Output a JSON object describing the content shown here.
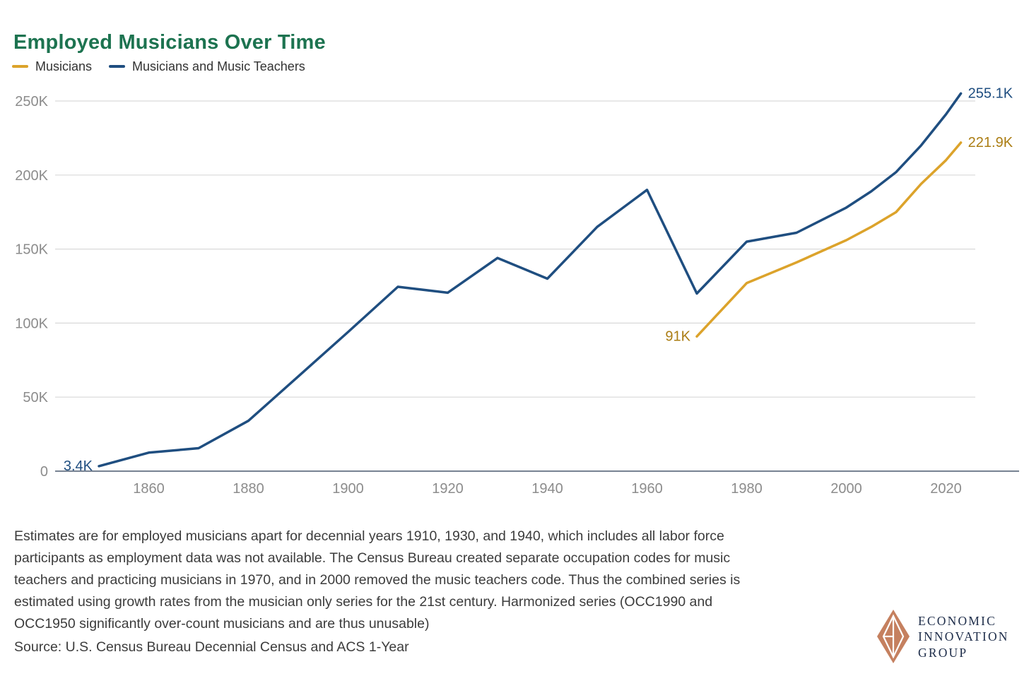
{
  "header": {
    "title": "Employed Musicians Over Time",
    "title_color": "#1d7350"
  },
  "legend": {
    "items": [
      {
        "label": "Musicians",
        "color": "#DCA32B"
      },
      {
        "label": "Musicians and Music Teachers",
        "color": "#1F4E80"
      }
    ]
  },
  "chart_data": {
    "type": "line",
    "title": "Employed Musicians Over Time",
    "xlabel": "",
    "ylabel": "",
    "x_range": [
      1850,
      2025
    ],
    "y_range": [
      0,
      260000
    ],
    "grid": true,
    "legend_position": "top-left",
    "x_ticks": [
      {
        "value": 1860,
        "label": "1860"
      },
      {
        "value": 1880,
        "label": "1880"
      },
      {
        "value": 1900,
        "label": "1900"
      },
      {
        "value": 1920,
        "label": "1920"
      },
      {
        "value": 1940,
        "label": "1940"
      },
      {
        "value": 1960,
        "label": "1960"
      },
      {
        "value": 1980,
        "label": "1980"
      },
      {
        "value": 2000,
        "label": "2000"
      },
      {
        "value": 2020,
        "label": "2020"
      }
    ],
    "y_ticks": [
      {
        "value": 0,
        "label": "0"
      },
      {
        "value": 50000,
        "label": "50K"
      },
      {
        "value": 100000,
        "label": "100K"
      },
      {
        "value": 150000,
        "label": "150K"
      },
      {
        "value": 200000,
        "label": "200K"
      },
      {
        "value": 250000,
        "label": "250K"
      }
    ],
    "series": [
      {
        "name": "Musicians",
        "color": "#DCA32B",
        "points": [
          [
            1970,
            91000
          ],
          [
            1980,
            127000
          ],
          [
            1990,
            141000
          ],
          [
            2000,
            156000
          ],
          [
            2005,
            165000
          ],
          [
            2010,
            175000
          ],
          [
            2015,
            194000
          ],
          [
            2020,
            210000
          ],
          [
            2023,
            221900
          ]
        ]
      },
      {
        "name": "Musicians and Music Teachers",
        "color": "#1F4E80",
        "points": [
          [
            1850,
            3400
          ],
          [
            1860,
            12500
          ],
          [
            1870,
            15500
          ],
          [
            1880,
            34000
          ],
          [
            1890,
            64000
          ],
          [
            1900,
            94000
          ],
          [
            1910,
            124500
          ],
          [
            1920,
            120500
          ],
          [
            1930,
            144000
          ],
          [
            1940,
            130000
          ],
          [
            1950,
            165000
          ],
          [
            1960,
            190000
          ],
          [
            1970,
            120000
          ],
          [
            1980,
            155000
          ],
          [
            1990,
            161000
          ],
          [
            2000,
            178000
          ],
          [
            2005,
            189000
          ],
          [
            2010,
            202000
          ],
          [
            2015,
            220000
          ],
          [
            2020,
            241000
          ],
          [
            2023,
            255100
          ]
        ]
      }
    ],
    "annotations": [
      {
        "text": "3.4K",
        "x": 1850,
        "y": 3400,
        "side": "left",
        "color": "#1F4E80"
      },
      {
        "text": "91K",
        "x": 1970,
        "y": 91000,
        "side": "left",
        "color": "#AB7D13"
      },
      {
        "text": "255.1K",
        "x": 2023,
        "y": 255100,
        "side": "right",
        "color": "#1F4E80"
      },
      {
        "text": "221.9K",
        "x": 2023,
        "y": 221900,
        "side": "right",
        "color": "#AB7D13"
      }
    ],
    "axis_colors": {
      "tick_label": "#8C8C8C",
      "gridline": "#D9D9D9",
      "axis_line": "#4A586E"
    }
  },
  "footnote": {
    "lines": [
      "Estimates are for employed musicians apart for decennial years 1910, 1930, and 1940, which includes all labor force",
      "participants as employment data was not available. The Census Bureau created separate occupation codes for music",
      "teachers and practicing musicians in 1970, and in 2000 removed the music teachers code. Thus the combined series is",
      "estimated using growth rates from the musician only series for the 21st century. Harmonized series (OCC1990 and",
      "OCC1950 significantly over-count musicians and are thus unusable)"
    ]
  },
  "source": {
    "text": "Source: U.S. Census Bureau Decennial Census and ACS 1-Year"
  },
  "logo": {
    "lines": [
      "ECONOMIC",
      "INNOVATION",
      "GROUP"
    ],
    "diamond_color": "#C5805F",
    "text_color": "#1D2C49"
  }
}
